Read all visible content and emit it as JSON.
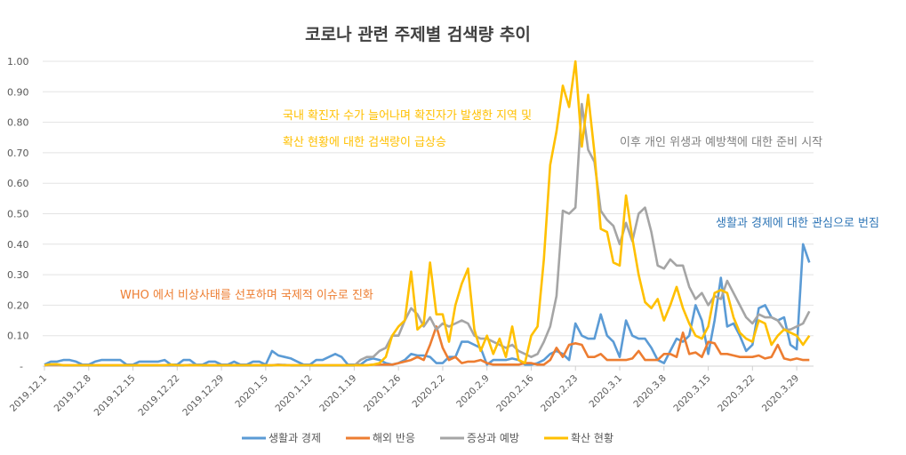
{
  "chart_data": {
    "type": "line",
    "title": "코로나 관련 주제별 검색량 추이",
    "xlabel": "",
    "ylabel": "",
    "ylim": [
      0,
      1.0
    ],
    "y_ticks": [
      "-",
      "0.10",
      "0.20",
      "0.30",
      "0.40",
      "0.50",
      "0.60",
      "0.70",
      "0.80",
      "0.90",
      "1.00"
    ],
    "x_ticks": [
      "2019.12.1",
      "2019.12.8",
      "2019.12.15",
      "2019.12.22",
      "2019.12.29",
      "2020.1.5",
      "2020.1.12",
      "2020.1.19",
      "2020.1.26",
      "2020.2.2",
      "2020.2.9",
      "2020.2.16",
      "2020.2.23",
      "2020.3.1",
      "2020.3.8",
      "2020.3.15",
      "2020.3.22",
      "2020.3.29"
    ],
    "x_range": [
      "2019.12.1",
      "2020.3.31"
    ],
    "grid": true,
    "legend_position": "bottom",
    "series": [
      {
        "name": "생활과 경제",
        "color": "#5b9bd5",
        "values": [
          0.005,
          0.015,
          0.015,
          0.02,
          0.02,
          0.015,
          0.005,
          0.005,
          0.015,
          0.02,
          0.02,
          0.02,
          0.02,
          0.005,
          0.005,
          0.015,
          0.015,
          0.015,
          0.015,
          0.02,
          0.005,
          0.005,
          0.02,
          0.02,
          0.005,
          0.005,
          0.015,
          0.015,
          0.005,
          0.005,
          0.015,
          0.005,
          0.005,
          0.015,
          0.015,
          0.005,
          0.05,
          0.035,
          0.03,
          0.025,
          0.015,
          0.005,
          0.005,
          0.02,
          0.02,
          0.03,
          0.04,
          0.03,
          0.005,
          0.005,
          0.005,
          0.02,
          0.025,
          0.02,
          0.01,
          0.005,
          0.01,
          0.02,
          0.04,
          0.035,
          0.035,
          0.03,
          0.01,
          0.01,
          0.03,
          0.03,
          0.08,
          0.08,
          0.07,
          0.06,
          0.005,
          0.02,
          0.02,
          0.02,
          0.025,
          0.02,
          0.005,
          0.005,
          0.01,
          0.02,
          0.04,
          0.05,
          0.04,
          0.02,
          0.14,
          0.1,
          0.09,
          0.09,
          0.17,
          0.1,
          0.08,
          0.03,
          0.15,
          0.1,
          0.09,
          0.09,
          0.06,
          0.02,
          0.01,
          0.05,
          0.09,
          0.08,
          0.1,
          0.2,
          0.15,
          0.04,
          0.15,
          0.29,
          0.13,
          0.14,
          0.1,
          0.05,
          0.07,
          0.19,
          0.2,
          0.16,
          0.15,
          0.16,
          0.07,
          0.055,
          0.4,
          0.34
        ]
      },
      {
        "name": "해외 반응",
        "color": "#ed7d31",
        "values": [
          0.003,
          0.003,
          0.003,
          0.003,
          0.003,
          0.003,
          0.003,
          0.003,
          0.003,
          0.003,
          0.003,
          0.003,
          0.003,
          0.003,
          0.003,
          0.003,
          0.003,
          0.003,
          0.003,
          0.003,
          0.003,
          0.003,
          0.003,
          0.003,
          0.003,
          0.003,
          0.003,
          0.003,
          0.003,
          0.003,
          0.003,
          0.003,
          0.003,
          0.003,
          0.003,
          0.003,
          0.003,
          0.005,
          0.003,
          0.003,
          0.003,
          0.003,
          0.003,
          0.003,
          0.003,
          0.003,
          0.003,
          0.003,
          0.003,
          0.003,
          0.003,
          0.003,
          0.005,
          0.005,
          0.005,
          0.005,
          0.01,
          0.015,
          0.02,
          0.03,
          0.02,
          0.07,
          0.13,
          0.06,
          0.02,
          0.03,
          0.01,
          0.015,
          0.015,
          0.02,
          0.01,
          0.005,
          0.005,
          0.005,
          0.005,
          0.005,
          0.01,
          0.01,
          0.005,
          0.005,
          0.02,
          0.06,
          0.03,
          0.07,
          0.075,
          0.07,
          0.03,
          0.03,
          0.04,
          0.02,
          0.02,
          0.02,
          0.02,
          0.025,
          0.05,
          0.02,
          0.02,
          0.02,
          0.04,
          0.04,
          0.03,
          0.11,
          0.04,
          0.045,
          0.03,
          0.08,
          0.075,
          0.04,
          0.04,
          0.035,
          0.03,
          0.03,
          0.03,
          0.035,
          0.025,
          0.03,
          0.07,
          0.025,
          0.02,
          0.025,
          0.02,
          0.02
        ]
      },
      {
        "name": "증상과 예방",
        "color": "#a5a5a5",
        "values": [
          0.002,
          0.004,
          0.004,
          0.002,
          0.002,
          0.002,
          0.002,
          0.002,
          0.002,
          0.002,
          0.002,
          0.002,
          0.002,
          0.002,
          0.002,
          0.002,
          0.002,
          0.002,
          0.002,
          0.002,
          0.002,
          0.002,
          0.002,
          0.004,
          0.004,
          0.002,
          0.002,
          0.002,
          0.002,
          0.002,
          0.002,
          0.002,
          0.002,
          0.002,
          0.002,
          0.002,
          0.002,
          0.004,
          0.004,
          0.002,
          0.002,
          0.002,
          0.002,
          0.002,
          0.002,
          0.002,
          0.002,
          0.002,
          0.002,
          0.002,
          0.02,
          0.03,
          0.03,
          0.05,
          0.06,
          0.1,
          0.1,
          0.15,
          0.19,
          0.17,
          0.13,
          0.16,
          0.12,
          0.14,
          0.13,
          0.14,
          0.15,
          0.14,
          0.1,
          0.09,
          0.09,
          0.08,
          0.07,
          0.06,
          0.07,
          0.05,
          0.04,
          0.03,
          0.04,
          0.08,
          0.13,
          0.23,
          0.51,
          0.5,
          0.52,
          0.86,
          0.71,
          0.67,
          0.51,
          0.48,
          0.46,
          0.4,
          0.47,
          0.41,
          0.5,
          0.52,
          0.44,
          0.33,
          0.32,
          0.35,
          0.33,
          0.33,
          0.26,
          0.22,
          0.24,
          0.2,
          0.23,
          0.22,
          0.28,
          0.24,
          0.2,
          0.16,
          0.14,
          0.17,
          0.16,
          0.16,
          0.15,
          0.12,
          0.12,
          0.13,
          0.14,
          0.18
        ]
      },
      {
        "name": "확산 현황",
        "color": "#ffc000",
        "values": [
          0.003,
          0.006,
          0.006,
          0.003,
          0.003,
          0.003,
          0.003,
          0.003,
          0.003,
          0.003,
          0.003,
          0.003,
          0.003,
          0.003,
          0.003,
          0.003,
          0.003,
          0.003,
          0.003,
          0.003,
          0.005,
          0.003,
          0.003,
          0.003,
          0.003,
          0.003,
          0.003,
          0.003,
          0.003,
          0.003,
          0.003,
          0.003,
          0.003,
          0.003,
          0.003,
          0.003,
          0.003,
          0.003,
          0.003,
          0.003,
          0.003,
          0.003,
          0.003,
          0.003,
          0.003,
          0.003,
          0.003,
          0.003,
          0.003,
          0.003,
          0.003,
          0.003,
          0.005,
          0.01,
          0.03,
          0.1,
          0.13,
          0.15,
          0.31,
          0.12,
          0.14,
          0.34,
          0.17,
          0.17,
          0.08,
          0.2,
          0.27,
          0.32,
          0.12,
          0.05,
          0.1,
          0.04,
          0.09,
          0.03,
          0.13,
          0.02,
          0.01,
          0.1,
          0.13,
          0.35,
          0.66,
          0.77,
          0.92,
          0.85,
          1.0,
          0.72,
          0.89,
          0.7,
          0.45,
          0.44,
          0.34,
          0.33,
          0.56,
          0.42,
          0.3,
          0.21,
          0.19,
          0.22,
          0.15,
          0.2,
          0.26,
          0.19,
          0.14,
          0.1,
          0.09,
          0.13,
          0.24,
          0.25,
          0.24,
          0.16,
          0.11,
          0.09,
          0.08,
          0.15,
          0.14,
          0.07,
          0.1,
          0.12,
          0.11,
          0.1,
          0.07,
          0.1
        ]
      }
    ],
    "annotations": {
      "who": {
        "text": "WHO 에서 비상사태를 선포하며 국제적 이슈로 진화",
        "color": "#ed7d31"
      },
      "spread_line1": {
        "text": "국내 확진자 수가 늘어나며 확진자가 발생한 지역 및",
        "color": "#ffc000"
      },
      "spread_line2": {
        "text": "확산 현황에 대한 검색량이 급상승",
        "color": "#ffc000"
      },
      "hygiene": {
        "text": "이후 개인 위생과 예방책에 대한 준비 시작",
        "color": "#7f7f7f"
      },
      "economy": {
        "text": "생활과 경제에 대한 관심으로 번짐",
        "color": "#2e75b6"
      }
    }
  }
}
